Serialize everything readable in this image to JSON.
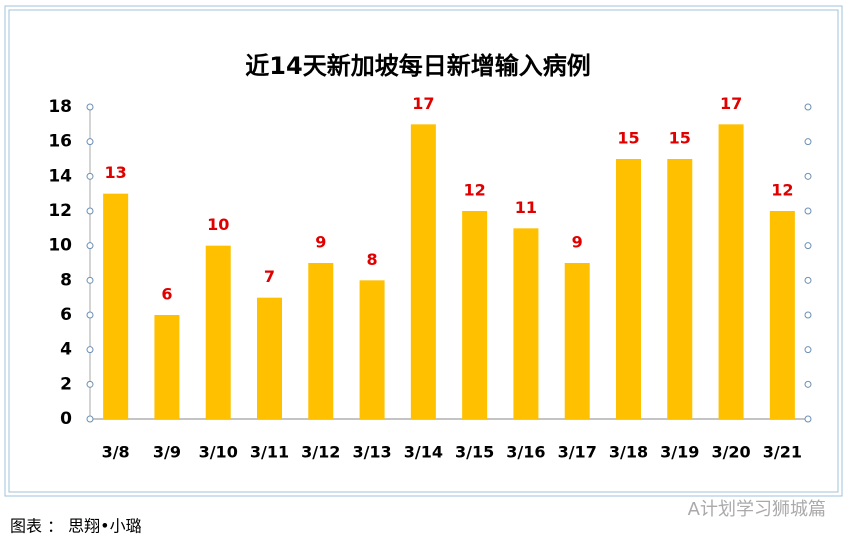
{
  "chart_data": {
    "type": "bar",
    "title": "近14天新加坡每日新增输入病例",
    "categories": [
      "3/8",
      "3/9",
      "3/10",
      "3/11",
      "3/12",
      "3/13",
      "3/14",
      "3/15",
      "3/16",
      "3/17",
      "3/18",
      "3/19",
      "3/20",
      "3/21"
    ],
    "values": [
      13,
      6,
      10,
      7,
      9,
      8,
      17,
      12,
      11,
      9,
      15,
      15,
      17,
      12
    ],
    "color": "#ffc000",
    "label_color": "#e00000",
    "ylim": [
      0,
      18
    ],
    "yticks": [
      0,
      2,
      4,
      6,
      8,
      10,
      12,
      14,
      16,
      18
    ],
    "grid": false
  },
  "caption": "图表 ： 思翔•小璐",
  "watermark": "A计划学习狮城篇"
}
